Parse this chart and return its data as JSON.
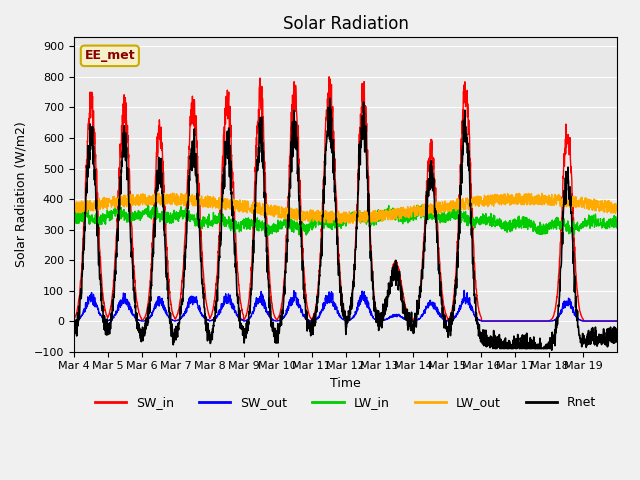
{
  "title": "Solar Radiation",
  "xlabel": "Time",
  "ylabel": "Solar Radiation (W/m2)",
  "ylim": [
    -100,
    930
  ],
  "yticks": [
    -100,
    0,
    100,
    200,
    300,
    400,
    500,
    600,
    700,
    800,
    900
  ],
  "x_labels": [
    "Mar 4",
    "Mar 5",
    "Mar 6",
    "Mar 7",
    "Mar 8",
    "Mar 9",
    "Mar 10",
    "Mar 11",
    "Mar 12",
    "Mar 13",
    "Mar 14",
    "Mar 15",
    "Mar 16",
    "Mar 17",
    "Mar 18",
    "Mar 19"
  ],
  "annotation": "EE_met",
  "fig_facecolor": "#f0f0f0",
  "plot_bg_color": "#e8e8e8",
  "colors": {
    "SW_in": "#ff0000",
    "SW_out": "#0000ff",
    "LW_in": "#00cc00",
    "LW_out": "#ffaa00",
    "Rnet": "#000000"
  },
  "sw_in_peaks": [
    780,
    750,
    670,
    760,
    770,
    810,
    800,
    820,
    810,
    200,
    615,
    810,
    0,
    0,
    680,
    0
  ],
  "n_days": 16,
  "points_per_day": 144
}
